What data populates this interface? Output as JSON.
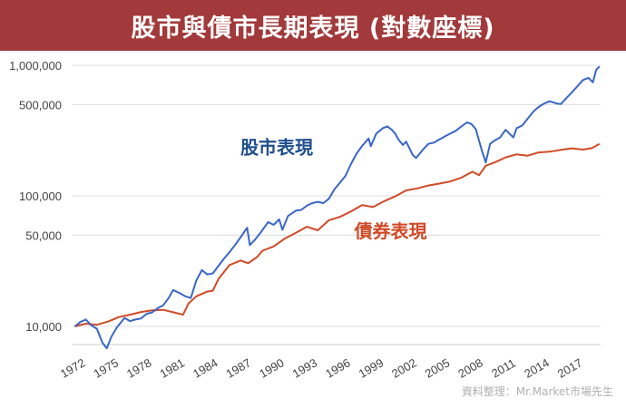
{
  "title": "股市與債市長期表現 (對數座標)",
  "source": "資料整理：Mr.Market市場先生",
  "colors": {
    "title_bg": "#a2393a",
    "stock": "#3a66c6",
    "bond": "#d04a27",
    "grid": "#dddddd"
  },
  "chart_data": {
    "type": "line",
    "yscale": "log",
    "ylim": [
      8000,
      1100000
    ],
    "xlim": [
      1971.8,
      2019.6
    ],
    "yticks": [
      {
        "value": 10000,
        "label": "10,000"
      },
      {
        "value": 50000,
        "label": "50,000"
      },
      {
        "value": 100000,
        "label": "100,000"
      },
      {
        "value": 500000,
        "label": "500,000"
      },
      {
        "value": 1000000,
        "label": "1,000,000"
      }
    ],
    "xticks": [
      "1972",
      "1975",
      "1978",
      "1981",
      "1984",
      "1987",
      "1990",
      "1993",
      "1996",
      "1999",
      "2002",
      "2005",
      "2008",
      "2011",
      "2014",
      "2017"
    ],
    "series": [
      {
        "name": "股市表現",
        "color": "#3a66c6",
        "label_position": {
          "x": 1987,
          "y": 210000
        },
        "points": [
          [
            1972,
            10000
          ],
          [
            1972.5,
            10800
          ],
          [
            1973,
            11300
          ],
          [
            1973.5,
            10200
          ],
          [
            1974,
            9600
          ],
          [
            1974.5,
            7500
          ],
          [
            1974.9,
            6800
          ],
          [
            1975.3,
            8300
          ],
          [
            1975.8,
            9800
          ],
          [
            1976.5,
            11600
          ],
          [
            1977,
            11000
          ],
          [
            1977.5,
            11300
          ],
          [
            1978,
            11500
          ],
          [
            1978.5,
            12500
          ],
          [
            1979,
            12800
          ],
          [
            1979.5,
            13800
          ],
          [
            1980,
            14500
          ],
          [
            1980.5,
            16500
          ],
          [
            1980.9,
            19000
          ],
          [
            1981.5,
            18000
          ],
          [
            1982,
            17000
          ],
          [
            1982.5,
            16500
          ],
          [
            1983,
            22500
          ],
          [
            1983.5,
            27000
          ],
          [
            1984,
            25000
          ],
          [
            1984.5,
            25500
          ],
          [
            1985,
            29000
          ],
          [
            1985.5,
            33000
          ],
          [
            1986,
            37000
          ],
          [
            1986.5,
            42000
          ],
          [
            1987,
            48000
          ],
          [
            1987.6,
            57000
          ],
          [
            1987.85,
            42000
          ],
          [
            1988.3,
            46000
          ],
          [
            1988.8,
            52000
          ],
          [
            1989.5,
            63000
          ],
          [
            1990,
            60000
          ],
          [
            1990.5,
            66000
          ],
          [
            1990.8,
            55000
          ],
          [
            1991.3,
            70000
          ],
          [
            1992,
            77000
          ],
          [
            1992.5,
            78000
          ],
          [
            1993,
            84000
          ],
          [
            1993.5,
            88000
          ],
          [
            1994,
            90000
          ],
          [
            1994.5,
            88000
          ],
          [
            1995,
            95000
          ],
          [
            1995.5,
            112000
          ],
          [
            1996,
            126000
          ],
          [
            1996.5,
            142000
          ],
          [
            1997,
            175000
          ],
          [
            1997.5,
            210000
          ],
          [
            1998,
            240000
          ],
          [
            1998.6,
            275000
          ],
          [
            1998.8,
            240000
          ],
          [
            1999.3,
            300000
          ],
          [
            1999.9,
            330000
          ],
          [
            2000.3,
            340000
          ],
          [
            2000.7,
            320000
          ],
          [
            2001,
            300000
          ],
          [
            2001.3,
            270000
          ],
          [
            2001.7,
            245000
          ],
          [
            2002,
            260000
          ],
          [
            2002.6,
            205000
          ],
          [
            2002.9,
            195000
          ],
          [
            2003.5,
            225000
          ],
          [
            2004,
            250000
          ],
          [
            2004.5,
            255000
          ],
          [
            2005,
            270000
          ],
          [
            2005.5,
            285000
          ],
          [
            2006,
            300000
          ],
          [
            2006.5,
            315000
          ],
          [
            2007,
            340000
          ],
          [
            2007.5,
            365000
          ],
          [
            2007.9,
            355000
          ],
          [
            2008.3,
            325000
          ],
          [
            2008.8,
            230000
          ],
          [
            2009.2,
            180000
          ],
          [
            2009.6,
            250000
          ],
          [
            2010,
            265000
          ],
          [
            2010.5,
            280000
          ],
          [
            2011,
            320000
          ],
          [
            2011.7,
            280000
          ],
          [
            2012,
            330000
          ],
          [
            2012.5,
            345000
          ],
          [
            2013,
            390000
          ],
          [
            2013.5,
            440000
          ],
          [
            2014,
            480000
          ],
          [
            2014.5,
            510000
          ],
          [
            2015,
            530000
          ],
          [
            2015.6,
            510000
          ],
          [
            2016,
            505000
          ],
          [
            2016.5,
            560000
          ],
          [
            2017,
            620000
          ],
          [
            2017.5,
            690000
          ],
          [
            2018,
            770000
          ],
          [
            2018.5,
            800000
          ],
          [
            2018.9,
            740000
          ],
          [
            2019.2,
            920000
          ],
          [
            2019.5,
            980000
          ]
        ]
      },
      {
        "name": "債券表現",
        "color": "#d04a27",
        "label_position": {
          "x": 1997.3,
          "y": 48000
        },
        "points": [
          [
            1972,
            10000
          ],
          [
            1973,
            10500
          ],
          [
            1974,
            10300
          ],
          [
            1975,
            10900
          ],
          [
            1976,
            11800
          ],
          [
            1977,
            12300
          ],
          [
            1978,
            12900
          ],
          [
            1979,
            13300
          ],
          [
            1980,
            13400
          ],
          [
            1981,
            12800
          ],
          [
            1981.8,
            12300
          ],
          [
            1982.3,
            15000
          ],
          [
            1983,
            17000
          ],
          [
            1984,
            18500
          ],
          [
            1984.5,
            18800
          ],
          [
            1985,
            23000
          ],
          [
            1986,
            29500
          ],
          [
            1987,
            32000
          ],
          [
            1987.7,
            30500
          ],
          [
            1988.5,
            34000
          ],
          [
            1989,
            38000
          ],
          [
            1990,
            41000
          ],
          [
            1991,
            47000
          ],
          [
            1992,
            52000
          ],
          [
            1993,
            58000
          ],
          [
            1994,
            54500
          ],
          [
            1995,
            65000
          ],
          [
            1996,
            69000
          ],
          [
            1997,
            76000
          ],
          [
            1998,
            85000
          ],
          [
            1999,
            82000
          ],
          [
            2000,
            91000
          ],
          [
            2001,
            99000
          ],
          [
            2002,
            110000
          ],
          [
            2003,
            114000
          ],
          [
            2004,
            120000
          ],
          [
            2005,
            124000
          ],
          [
            2006,
            129000
          ],
          [
            2007,
            138000
          ],
          [
            2008,
            153000
          ],
          [
            2008.6,
            144000
          ],
          [
            2009.2,
            170000
          ],
          [
            2010,
            180000
          ],
          [
            2011,
            197000
          ],
          [
            2012,
            208000
          ],
          [
            2013,
            203000
          ],
          [
            2014,
            215000
          ],
          [
            2015,
            218000
          ],
          [
            2016,
            225000
          ],
          [
            2017,
            231000
          ],
          [
            2018,
            226000
          ],
          [
            2018.8,
            232000
          ],
          [
            2019.5,
            250000
          ]
        ]
      }
    ]
  }
}
